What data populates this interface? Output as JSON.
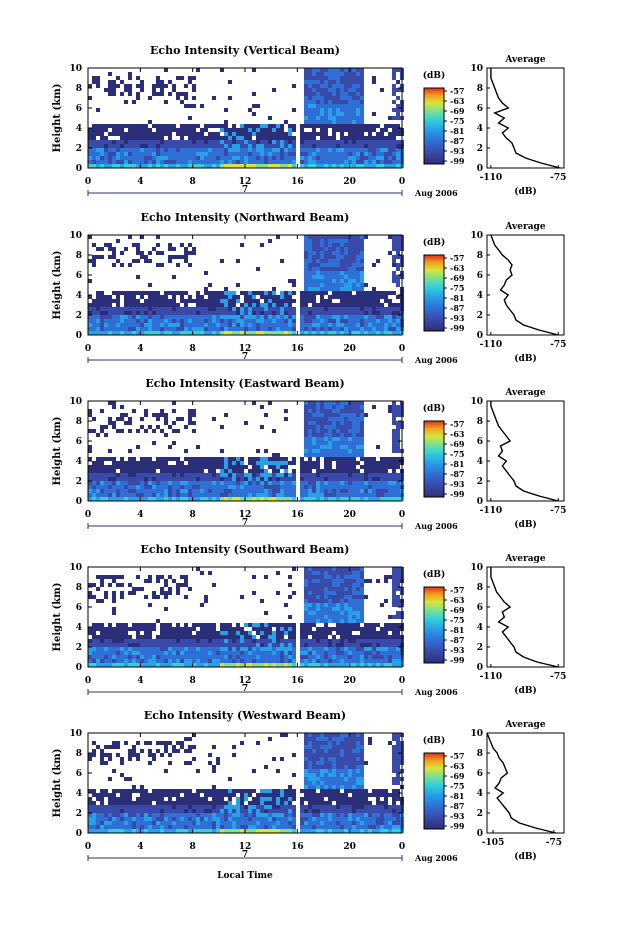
{
  "figure": {
    "xlabel": "Local Time",
    "date_label": "Aug 2006",
    "day_label": "7",
    "colorbar_unit": "(dB)",
    "colorbar_ticks": [
      "-57",
      "-63",
      "-69",
      "-75",
      "-81",
      "-87",
      "-93",
      "-99"
    ],
    "avg_title": "Average",
    "avg_xlabel": "(dB)",
    "ylabel": "Height (km)"
  },
  "colors": {
    "scale": [
      "#2b2f7a",
      "#3a4aa8",
      "#2f6fd6",
      "#27a0e8",
      "#34d0d8",
      "#7fe28a",
      "#d9e43a",
      "#f2a11f",
      "#e0301a"
    ]
  },
  "chart_data": [
    {
      "type": "heatmap",
      "title": "Echo Intensity (Vertical Beam)",
      "xlabel": "",
      "ylabel": "Height (km)",
      "x_ticks": [
        "0",
        "4",
        "8",
        "12",
        "16",
        "20",
        "0"
      ],
      "y_ticks": [
        "0",
        "2",
        "4",
        "6",
        "8",
        "10"
      ],
      "xlim": [
        0,
        24
      ],
      "ylim": [
        0,
        10
      ],
      "colorbar": {
        "label": "(dB)",
        "range": [
          -99,
          -57
        ]
      },
      "average": {
        "title": "Average",
        "xlabel": "(dB)",
        "x_ticks": [
          "-110",
          "-75"
        ],
        "xlim": [
          -112,
          -72
        ],
        "height": [
          0,
          0.5,
          1,
          1.5,
          2,
          2.5,
          3,
          3.5,
          4,
          4.5,
          5,
          5.5,
          6,
          6.5,
          7,
          7.5,
          8,
          8.5,
          9,
          9.5,
          10
        ],
        "db": [
          -74,
          -84,
          -92,
          -97,
          -98,
          -99,
          -102,
          -104,
          -101,
          -106,
          -103,
          -108,
          -101,
          -104,
          -106,
          -107,
          -108,
          -109,
          -110,
          -110,
          -110
        ]
      }
    },
    {
      "type": "heatmap",
      "title": "Echo Intensity (Northward Beam)",
      "xlabel": "",
      "ylabel": "Height (km)",
      "x_ticks": [
        "0",
        "4",
        "8",
        "12",
        "16",
        "20",
        "0"
      ],
      "y_ticks": [
        "0",
        "2",
        "4",
        "6",
        "8",
        "10"
      ],
      "xlim": [
        0,
        24
      ],
      "ylim": [
        0,
        10
      ],
      "colorbar": {
        "label": "(dB)",
        "range": [
          -99,
          -57
        ]
      },
      "average": {
        "title": "Average",
        "xlabel": "(dB)",
        "x_ticks": [
          "-110",
          "-75"
        ],
        "xlim": [
          -112,
          -72
        ],
        "height": [
          0,
          0.5,
          1,
          1.5,
          2,
          2.5,
          3,
          3.5,
          4,
          4.5,
          5,
          5.5,
          6,
          6.5,
          7,
          7.5,
          8,
          8.5,
          9,
          9.5,
          10
        ],
        "db": [
          -75,
          -85,
          -93,
          -97,
          -98,
          -100,
          -102,
          -103,
          -101,
          -105,
          -103,
          -102,
          -99,
          -100,
          -99,
          -101,
          -104,
          -106,
          -108,
          -109,
          -110
        ]
      }
    },
    {
      "type": "heatmap",
      "title": "Echo Intensity (Eastward Beam)",
      "xlabel": "",
      "ylabel": "Height (km)",
      "x_ticks": [
        "0",
        "4",
        "8",
        "12",
        "16",
        "20",
        "0"
      ],
      "y_ticks": [
        "0",
        "2",
        "4",
        "6",
        "8",
        "10"
      ],
      "xlim": [
        0,
        24
      ],
      "ylim": [
        0,
        10
      ],
      "colorbar": {
        "label": "(dB)",
        "range": [
          -99,
          -57
        ]
      },
      "average": {
        "title": "Average",
        "xlabel": "(dB)",
        "x_ticks": [
          "-110",
          "-75"
        ],
        "xlim": [
          -112,
          -72
        ],
        "height": [
          0,
          0.5,
          1,
          1.5,
          2,
          2.5,
          3,
          3.5,
          4,
          4.5,
          5,
          5.5,
          6,
          6.5,
          7,
          7.5,
          8,
          8.5,
          9,
          9.5,
          10
        ],
        "db": [
          -75,
          -85,
          -93,
          -97,
          -98,
          -100,
          -102,
          -104,
          -102,
          -106,
          -104,
          -105,
          -100,
          -102,
          -104,
          -106,
          -107,
          -108,
          -109,
          -110,
          -110
        ]
      }
    },
    {
      "type": "heatmap",
      "title": "Echo Intensity (Southward Beam)",
      "xlabel": "",
      "ylabel": "Height (km)",
      "x_ticks": [
        "0",
        "4",
        "8",
        "12",
        "16",
        "20",
        "0"
      ],
      "y_ticks": [
        "0",
        "2",
        "4",
        "6",
        "8",
        "10"
      ],
      "xlim": [
        0,
        24
      ],
      "ylim": [
        0,
        10
      ],
      "colorbar": {
        "label": "(dB)",
        "range": [
          -99,
          -57
        ]
      },
      "average": {
        "title": "Average",
        "xlabel": "(dB)",
        "x_ticks": [
          "-110",
          "-75"
        ],
        "xlim": [
          -112,
          -72
        ],
        "height": [
          0,
          0.5,
          1,
          1.5,
          2,
          2.5,
          3,
          3.5,
          4,
          4.5,
          5,
          5.5,
          6,
          6.5,
          7,
          7.5,
          8,
          8.5,
          9,
          9.5,
          10
        ],
        "db": [
          -75,
          -86,
          -93,
          -97,
          -98,
          -100,
          -102,
          -104,
          -101,
          -106,
          -103,
          -104,
          -100,
          -103,
          -105,
          -107,
          -108,
          -109,
          -110,
          -110,
          -110
        ]
      }
    },
    {
      "type": "heatmap",
      "title": "Echo Intensity (Westward Beam)",
      "xlabel": "Local Time",
      "ylabel": "Height (km)",
      "x_ticks": [
        "0",
        "4",
        "8",
        "12",
        "16",
        "20",
        "0"
      ],
      "y_ticks": [
        "0",
        "2",
        "4",
        "6",
        "8",
        "10"
      ],
      "xlim": [
        0,
        24
      ],
      "ylim": [
        0,
        10
      ],
      "colorbar": {
        "label": "(dB)",
        "range": [
          -99,
          -57
        ]
      },
      "average": {
        "title": "Average",
        "xlabel": "(dB)",
        "x_ticks": [
          "-105",
          "-75"
        ],
        "xlim": [
          -108,
          -70
        ],
        "height": [
          0,
          0.5,
          1,
          1.5,
          2,
          2.5,
          3,
          3.5,
          4,
          4.5,
          5,
          5.5,
          6,
          6.5,
          7,
          7.5,
          8,
          8.5,
          9,
          9.5,
          10
        ],
        "db": [
          -74,
          -84,
          -92,
          -96,
          -97,
          -99,
          -101,
          -103,
          -100,
          -104,
          -102,
          -101,
          -98,
          -99,
          -100,
          -102,
          -103,
          -105,
          -106,
          -107,
          -108
        ]
      }
    }
  ]
}
